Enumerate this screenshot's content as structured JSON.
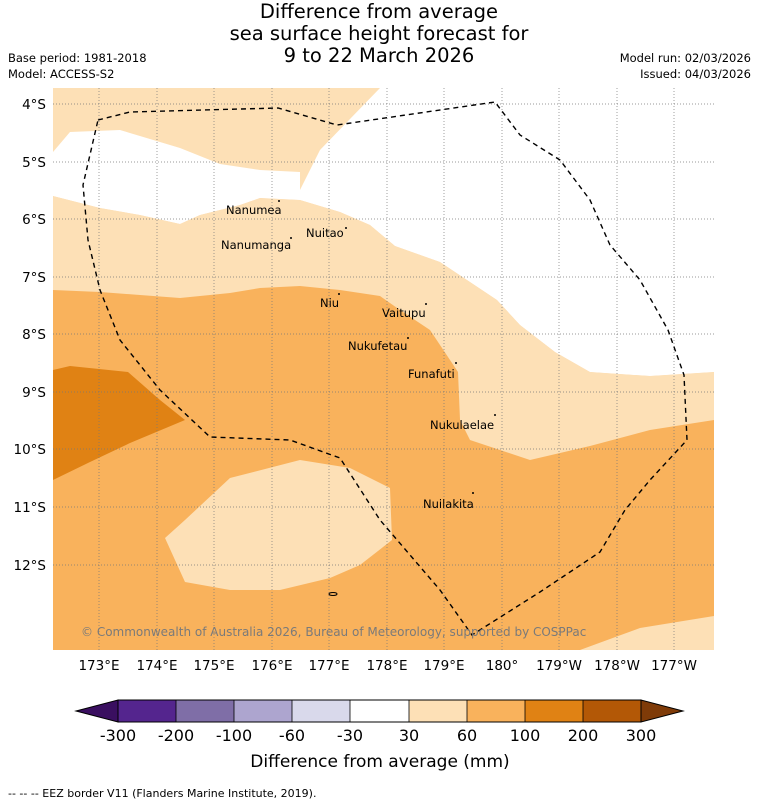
{
  "title": {
    "line1": "Difference from average",
    "line2": "sea surface height forecast for",
    "line3": "9 to 22 March 2026"
  },
  "meta": {
    "base_period": "Base period: 1981-2018",
    "model": "Model: ACCESS-S2",
    "model_run": "Model run: 02/03/2026",
    "issued": "Issued: 04/03/2026"
  },
  "map": {
    "lat_labels": [
      "4°S",
      "5°S",
      "6°S",
      "7°S",
      "8°S",
      "9°S",
      "10°S",
      "11°S",
      "12°S"
    ],
    "lon_labels": [
      "173°E",
      "174°E",
      "175°E",
      "176°E",
      "177°E",
      "178°E",
      "179°E",
      "180°",
      "179°W",
      "178°W",
      "177°W"
    ],
    "islands": [
      "Nanumea",
      "Nuitao",
      "Nanumanga",
      "Niu",
      "Vaitupu",
      "Nukufetau",
      "Funafuti",
      "Nukulaelae",
      "Nuilakita"
    ],
    "copyright": "© Commonwealth of Australia 2026, Bureau of Meteorology, supported by COSPPac",
    "colors": {
      "land_outline": "#000000",
      "grid": "#666666",
      "eez": "#000000"
    }
  },
  "colorbar": {
    "labels": [
      "-300",
      "-200",
      "-100",
      "-60",
      "-30",
      "30",
      "60",
      "100",
      "200",
      "300"
    ],
    "colors": [
      "#3a0f60",
      "#54258e",
      "#7f6ea7",
      "#ada5cf",
      "#d9d9eb",
      "#ffffff",
      "#fde0b6",
      "#f9b25c",
      "#e08214",
      "#b35806",
      "#7f3b08"
    ],
    "title": "Difference from average (mm)"
  },
  "footer": {
    "eez_note": "-- -- -- EEZ border V11 (Flanders Marine Institute, 2019)."
  }
}
